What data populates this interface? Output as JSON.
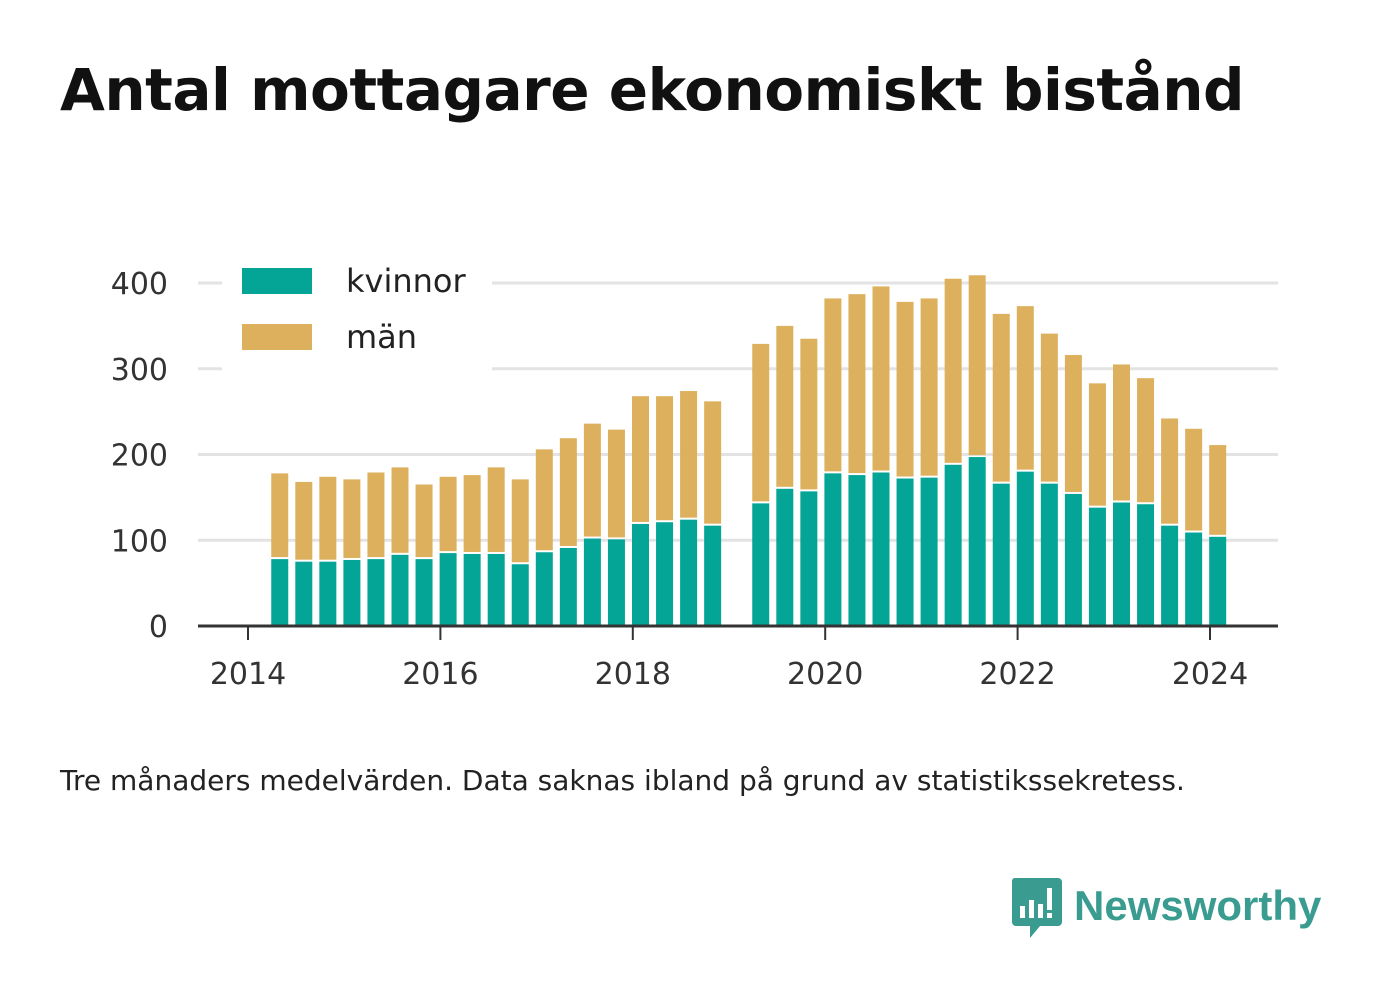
{
  "chart_data": {
    "type": "bar",
    "stacked": true,
    "title": "Antal mottagare ekonomiskt bistånd",
    "xlabel": "",
    "ylabel": "",
    "ylim": [
      0,
      420
    ],
    "yticks": [
      0,
      100,
      200,
      300,
      400
    ],
    "xticks": [
      2014,
      2016,
      2018,
      2020,
      2022,
      2024
    ],
    "xlim": [
      2013.5,
      2024.7
    ],
    "grid": true,
    "legend_placement": "top-left",
    "x": [
      2014.33,
      2014.58,
      2014.83,
      2015.08,
      2015.33,
      2015.58,
      2015.83,
      2016.08,
      2016.33,
      2016.58,
      2016.83,
      2017.08,
      2017.33,
      2017.58,
      2017.83,
      2018.08,
      2018.33,
      2018.58,
      2018.83,
      2019.33,
      2019.58,
      2019.83,
      2020.08,
      2020.33,
      2020.58,
      2020.83,
      2021.08,
      2021.33,
      2021.58,
      2021.83,
      2022.08,
      2022.33,
      2022.58,
      2022.83,
      2023.08,
      2023.33,
      2023.58,
      2023.83,
      2024.08
    ],
    "series": [
      {
        "name": "kvinnor",
        "color": "#04a596",
        "values": [
          78,
          75,
          75,
          77,
          78,
          83,
          78,
          85,
          84,
          84,
          72,
          86,
          91,
          102,
          101,
          119,
          121,
          124,
          117,
          143,
          160,
          157,
          178,
          176,
          179,
          172,
          173,
          188,
          197,
          166,
          180,
          166,
          154,
          138,
          144,
          142,
          117,
          109,
          104
        ]
      },
      {
        "name": "män",
        "color": "#ddb05d",
        "values": [
          100,
          93,
          99,
          94,
          101,
          102,
          87,
          89,
          92,
          101,
          99,
          120,
          128,
          134,
          128,
          149,
          147,
          150,
          145,
          186,
          190,
          178,
          204,
          211,
          217,
          206,
          209,
          217,
          212,
          198,
          193,
          175,
          162,
          145,
          161,
          147,
          125,
          121,
          107
        ]
      }
    ],
    "annotations": [
      "Tre månaders medelvärden. Data saknas ibland på grund av statistikssekretess."
    ]
  },
  "footer": {
    "note": "Tre månaders medelvärden. Data saknas ibland på grund av statistikssekretess.",
    "brand": "Newsworthy",
    "brand_color": "#3a9c91",
    "brand_icon": "bar-chart-speech-bubble-icon"
  },
  "colors": {
    "gridline": "#e3e3e3",
    "axis": "#333333"
  }
}
